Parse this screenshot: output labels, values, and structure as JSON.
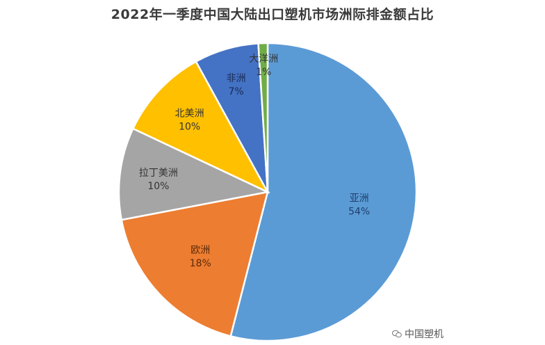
{
  "chart_data": {
    "type": "pie",
    "title": "2022年一季度中国大陆出口塑机市场洲际排金额占比",
    "slices": [
      {
        "name": "亚洲",
        "value": 54,
        "label": "54%",
        "color": "#5B9BD5"
      },
      {
        "name": "欧洲",
        "value": 18,
        "label": "18%",
        "color": "#ED7D31"
      },
      {
        "name": "拉丁美洲",
        "value": 10,
        "label": "10%",
        "color": "#A5A5A5"
      },
      {
        "name": "北美洲",
        "value": 10,
        "label": "10%",
        "color": "#FFC000"
      },
      {
        "name": "非洲",
        "value": 7,
        "label": "7%",
        "color": "#4472C4"
      },
      {
        "name": "大洋洲",
        "value": 1,
        "label": "1%",
        "color": "#70AD47"
      }
    ],
    "start_angle": "top",
    "direction": "clockwise"
  },
  "watermark": {
    "icon": "wechat-icon",
    "text": "中国塑机"
  }
}
